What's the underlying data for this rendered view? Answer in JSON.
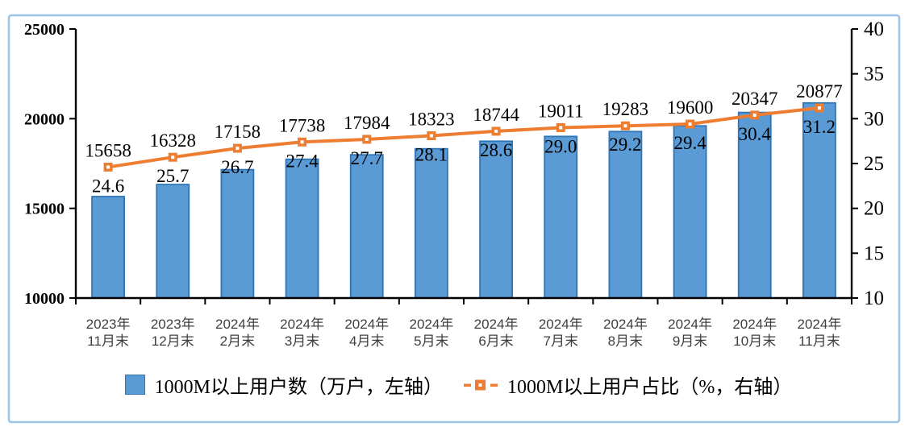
{
  "panel": {
    "border_color": "#9DC3E6",
    "background": "#FFFFFF"
  },
  "chart_data": {
    "type": "bar+line combo",
    "title": "",
    "grid": false,
    "legend_position": "bottom",
    "categories": [
      "2023年\n11月末",
      "2023年\n12月末",
      "2024年\n2月末",
      "2024年\n3月末",
      "2024年\n4月末",
      "2024年\n5月末",
      "2024年\n6月末",
      "2024年\n7月末",
      "2024年\n8月末",
      "2024年\n9月末",
      "2024年\n10月末",
      "2024年\n11月末"
    ],
    "series": [
      {
        "name": "1000M以上用户数（万户，左轴）",
        "type": "bar",
        "axis": "left",
        "color": "#5B9BD5",
        "border_color": "#2E75B6",
        "values": [
          15658,
          16328,
          17158,
          17738,
          17984,
          18323,
          18744,
          19011,
          19283,
          19600,
          20347,
          20877
        ],
        "labels": [
          "15658",
          "16328",
          "17158",
          "17738",
          "17984",
          "18323",
          "18744",
          "19011",
          "19283",
          "19600",
          "20347",
          "20877"
        ]
      },
      {
        "name": "1000M以上用户占比（%，右轴）",
        "type": "line",
        "axis": "right",
        "color": "#ED7D31",
        "marker": "square-open",
        "values": [
          24.6,
          25.7,
          26.7,
          27.4,
          27.7,
          28.1,
          28.6,
          29.0,
          29.2,
          29.4,
          30.4,
          31.2
        ],
        "labels": [
          "24.6",
          "25.7",
          "26.7",
          "27.4",
          "27.7",
          "28.1",
          "28.6",
          "29.0",
          "29.2",
          "29.4",
          "30.4",
          "31.2"
        ]
      }
    ],
    "left_axis": {
      "min": 10000,
      "max": 25000,
      "ticks": [
        25000,
        20000,
        15000,
        10000
      ],
      "tick_labels": [
        "25000",
        "20000",
        "15000",
        "10000"
      ]
    },
    "right_axis": {
      "min": 10,
      "max": 40,
      "ticks": [
        40,
        35,
        30,
        25,
        20,
        15,
        10
      ],
      "tick_labels": [
        "40",
        "35",
        "30",
        "25",
        "20",
        "15",
        "10"
      ]
    }
  }
}
